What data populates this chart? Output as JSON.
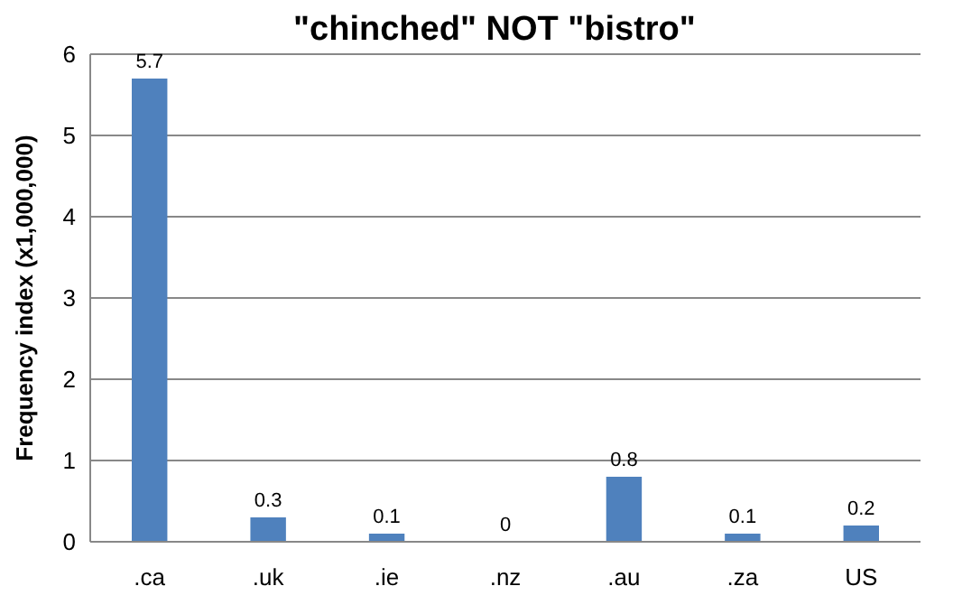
{
  "chart_data": {
    "type": "bar",
    "title": "\"chinched\" NOT \"bistro\"",
    "ylabel": "Frequency index (x1,000,000)",
    "categories": [
      ".ca",
      ".uk",
      ".ie",
      ".nz",
      ".au",
      ".za",
      "US"
    ],
    "values": [
      5.7,
      0.3,
      0.1,
      0,
      0.8,
      0.1,
      0.2
    ],
    "color": "#4f81bd",
    "ylim": [
      0,
      6
    ],
    "yticks": [
      0,
      1,
      2,
      3,
      4,
      5,
      6
    ],
    "grid": "y",
    "data_labels": true
  }
}
